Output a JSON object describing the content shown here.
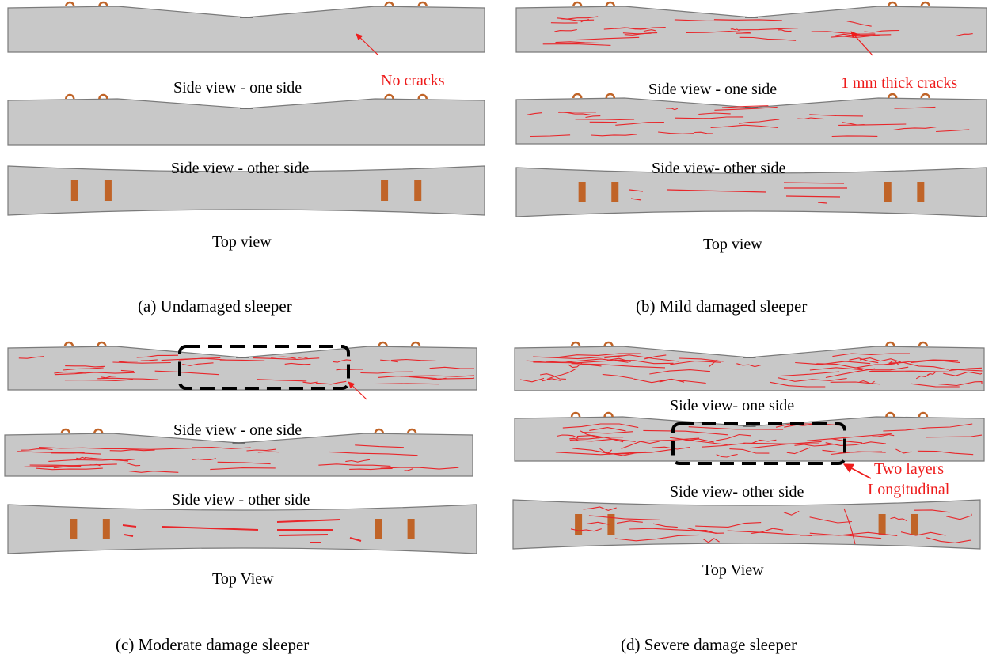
{
  "colors": {
    "sleeper_fill": "#c8c8c8",
    "sleeper_edge": "#7a7a7a",
    "crack": "#e8262a",
    "annotation": "#ee1c1c",
    "fastener": "#c06428",
    "frame": "#000000"
  },
  "panels": {
    "a": {
      "caption": "(a) Undamaged sleeper",
      "side1": "Side view - one side",
      "side2": "Side view - other side",
      "top": "Top view",
      "note": "No cracks"
    },
    "b": {
      "caption": "(b) Mild damaged sleeper",
      "side1": "Side view - one side",
      "side2": "Side view- other side",
      "top": "Top view",
      "note": "1 mm thick cracks"
    },
    "c": {
      "caption": "(c) Moderate damage sleeper",
      "side1": "Side view - one side",
      "side2": "Side view - other side",
      "top": "Top View"
    },
    "d": {
      "caption": "(d) Severe damage sleeper",
      "side1": "Side view- one side",
      "side2": "Side view- other side",
      "top": "Top View",
      "note_line1": "Two layers",
      "note_line2": "Longitudinal"
    }
  }
}
